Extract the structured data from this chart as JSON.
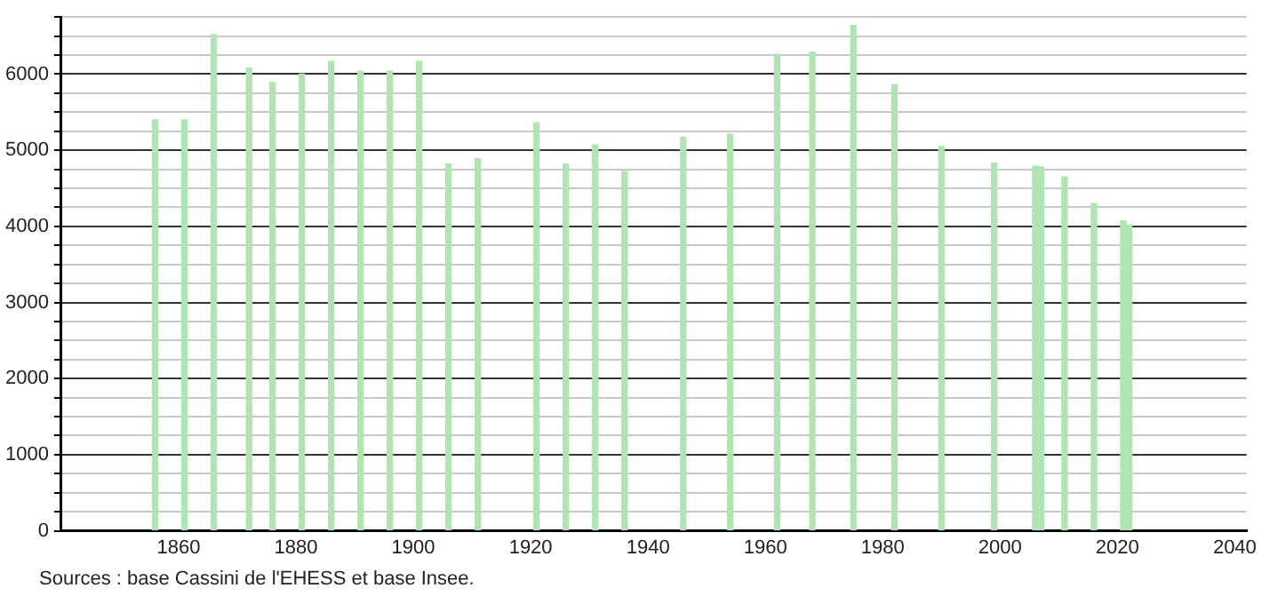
{
  "chart_data": {
    "type": "bar",
    "x": [
      1856,
      1861,
      1866,
      1872,
      1876,
      1881,
      1886,
      1891,
      1896,
      1901,
      1906,
      1911,
      1921,
      1926,
      1931,
      1936,
      1946,
      1954,
      1962,
      1968,
      1975,
      1982,
      1990,
      1999,
      2006,
      2007,
      2011,
      2016,
      2021,
      2022
    ],
    "values": [
      5400,
      5400,
      6520,
      6080,
      5890,
      6000,
      6170,
      6040,
      6040,
      6170,
      4820,
      4890,
      5360,
      4820,
      5070,
      4720,
      5170,
      5210,
      6260,
      6290,
      6640,
      5860,
      5050,
      4830,
      4790,
      4780,
      4650,
      4300,
      4070,
      4020
    ],
    "color": "#b0e4b0",
    "xlim": [
      1840,
      2042
    ],
    "xticks": [
      1860,
      1880,
      1900,
      1920,
      1940,
      1960,
      1980,
      2000,
      2020,
      2040
    ],
    "ylim": [
      0,
      6750
    ],
    "yticks": [
      0,
      {
        "value": 250,
        "label": null
      },
      {
        "value": 500,
        "label": null
      },
      {
        "value": 750,
        "label": null
      },
      1000,
      {
        "value": 1250,
        "label": null
      },
      {
        "value": 1500,
        "label": null
      },
      {
        "value": 1750,
        "label": null
      },
      2000,
      {
        "value": 2250,
        "label": null
      },
      {
        "value": 2500,
        "label": null
      },
      {
        "value": 2750,
        "label": null
      },
      3000,
      {
        "value": 3250,
        "label": null
      },
      {
        "value": 3500,
        "label": null
      },
      {
        "value": 3750,
        "label": null
      },
      4000,
      {
        "value": 4250,
        "label": null
      },
      {
        "value": 4500,
        "label": null
      },
      {
        "value": 4750,
        "label": null
      },
      5000,
      {
        "value": 5250,
        "label": null
      },
      {
        "value": 5500,
        "label": null
      },
      {
        "value": 5750,
        "label": null
      },
      6000,
      {
        "value": 6250,
        "label": null
      },
      {
        "value": 6500,
        "label": null
      },
      {
        "value": 6750,
        "label": null
      }
    ],
    "grid": "y",
    "legend": false,
    "annotations": [
      "Sources : base Cassini de l'EHESS et base Insee."
    ]
  }
}
